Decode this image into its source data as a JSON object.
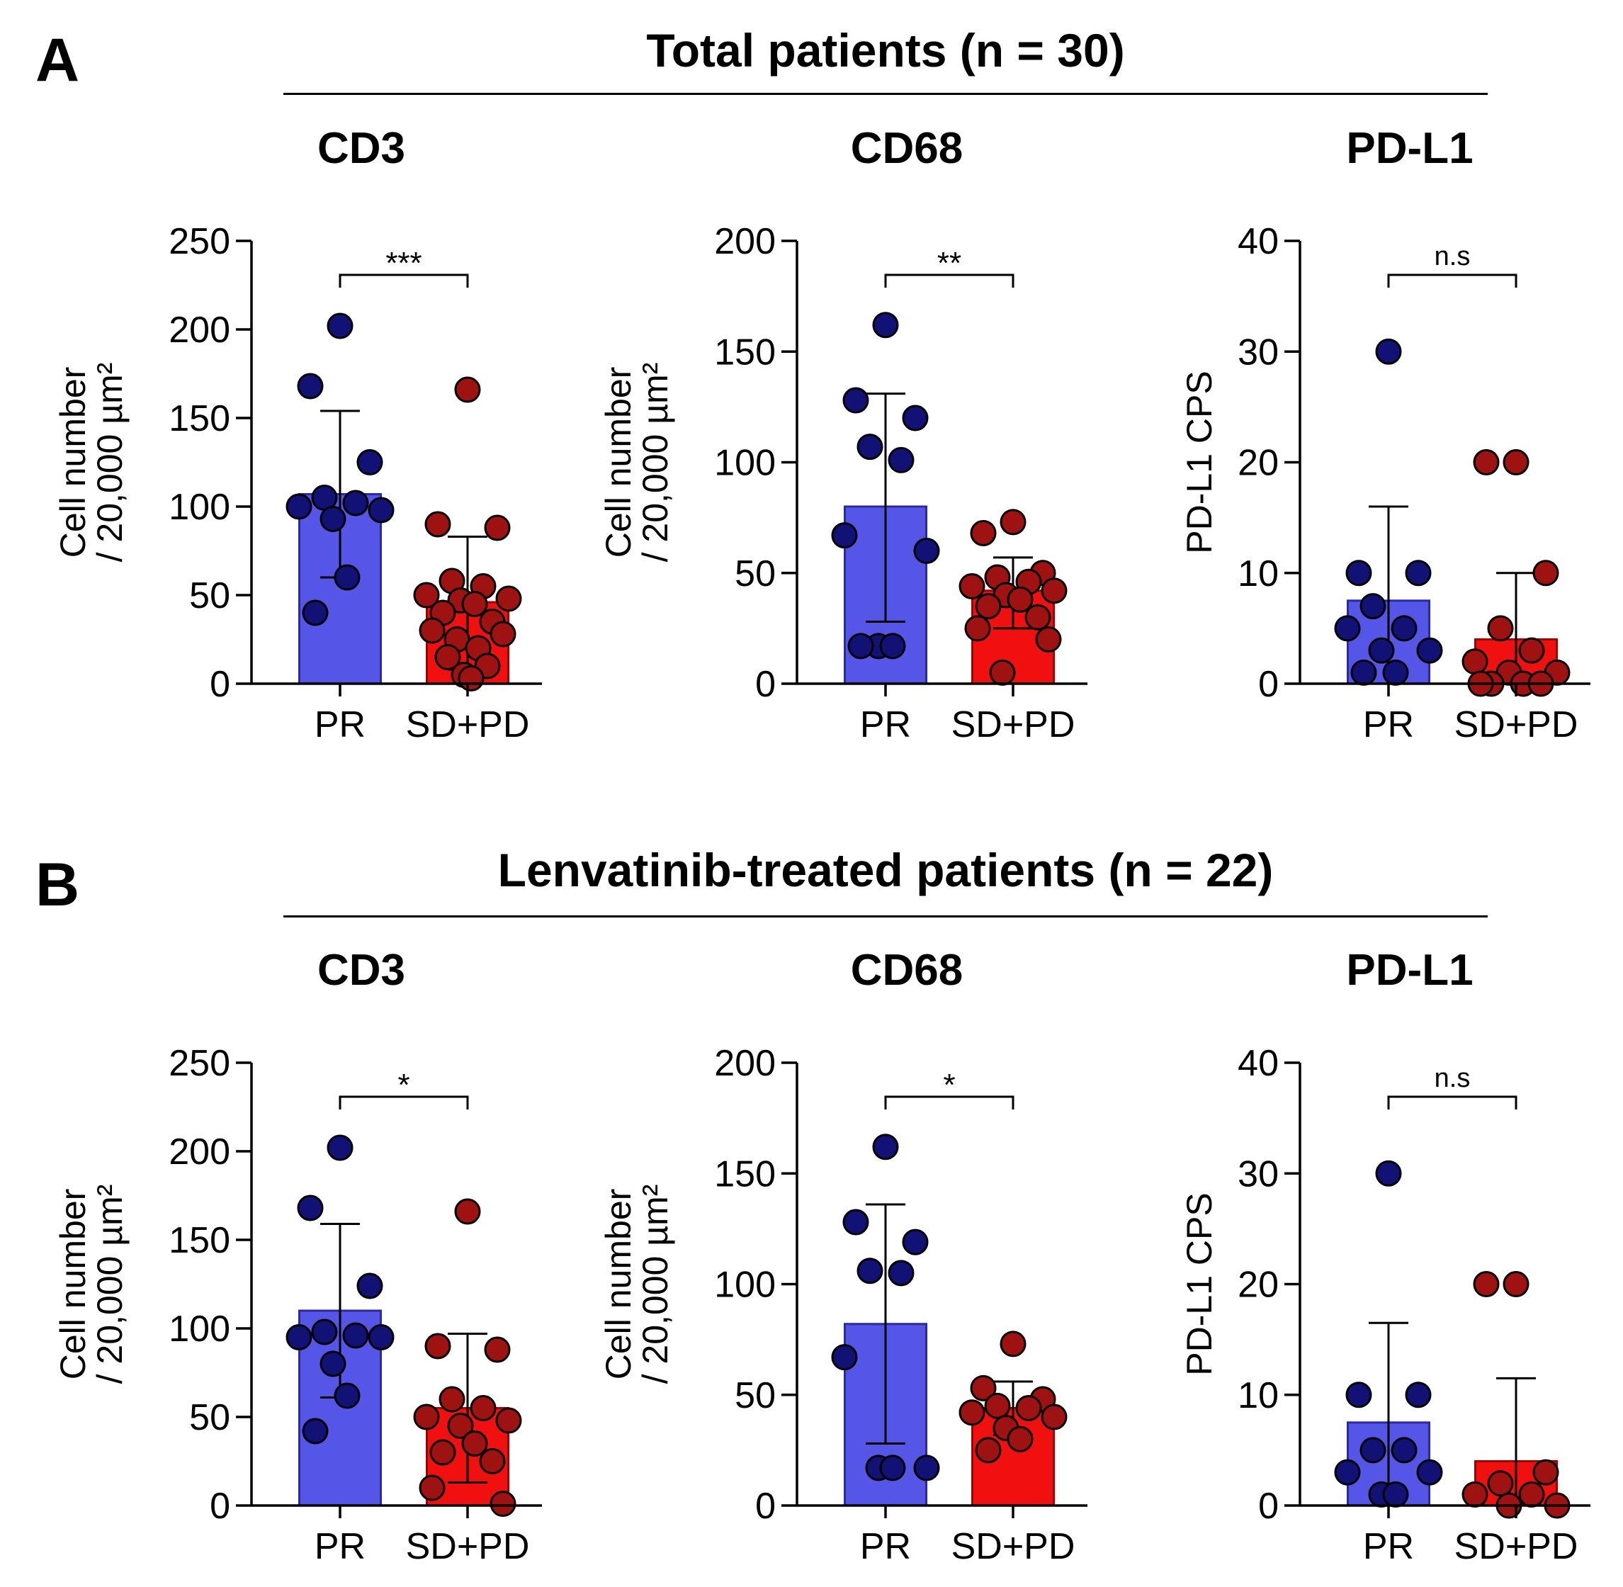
{
  "panels": [
    {
      "letter": "A",
      "title": "Total patients (n = 30)"
    },
    {
      "letter": "B",
      "title": "Lenvatinib-treated patients (n = 22)"
    }
  ],
  "colors": {
    "pr_bar": "#5555e8",
    "pr_dot": "#121276",
    "sdpd_bar": "#f01010",
    "sdpd_dot": "#9e1212",
    "axis": "#000000"
  },
  "chart_data": [
    {
      "type": "bar",
      "panel": "A",
      "title": "CD3",
      "ylabel_line1": "Cell number",
      "ylabel_line2": "/ 20,000 µm²",
      "categories": [
        "PR",
        "SD+PD"
      ],
      "ylim": [
        0,
        250
      ],
      "yticks": [
        0,
        50,
        100,
        150,
        200,
        250
      ],
      "significance": "***",
      "series": [
        {
          "name": "PR",
          "mean": 107,
          "sd_low": 60,
          "sd_high": 154,
          "points": [
            202,
            168,
            125,
            105,
            102,
            100,
            98,
            93,
            60,
            40
          ]
        },
        {
          "name": "SD+PD",
          "mean": 46,
          "sd_low": 8,
          "sd_high": 83,
          "points": [
            166,
            90,
            88,
            58,
            55,
            50,
            48,
            47,
            45,
            40,
            35,
            30,
            28,
            25,
            20,
            15,
            10,
            5,
            3
          ]
        }
      ]
    },
    {
      "type": "bar",
      "panel": "A",
      "title": "CD68",
      "ylabel_line1": "Cell number",
      "ylabel_line2": "/ 20,000 µm²",
      "categories": [
        "PR",
        "SD+PD"
      ],
      "ylim": [
        0,
        200
      ],
      "yticks": [
        0,
        50,
        100,
        150,
        200
      ],
      "significance": "**",
      "series": [
        {
          "name": "PR",
          "mean": 80,
          "sd_low": 28,
          "sd_high": 131,
          "points": [
            162,
            128,
            120,
            107,
            101,
            67,
            60,
            17,
            17,
            17
          ]
        },
        {
          "name": "SD+PD",
          "mean": 42,
          "sd_low": 25,
          "sd_high": 57,
          "points": [
            73,
            68,
            50,
            48,
            46,
            44,
            42,
            40,
            38,
            35,
            30,
            25,
            20,
            5
          ]
        }
      ]
    },
    {
      "type": "bar",
      "panel": "A",
      "title": "PD-L1",
      "ylabel_line1": "PD-L1 CPS",
      "ylabel_line2": "",
      "categories": [
        "PR",
        "SD+PD"
      ],
      "ylim": [
        0,
        40
      ],
      "yticks": [
        0,
        10,
        20,
        30,
        40
      ],
      "significance": "n.s",
      "series": [
        {
          "name": "PR",
          "mean": 7.5,
          "sd_low": 0,
          "sd_high": 16,
          "points": [
            30,
            10,
            10,
            7,
            5,
            5,
            3,
            3,
            1,
            1
          ]
        },
        {
          "name": "SD+PD",
          "mean": 4,
          "sd_low": 0,
          "sd_high": 10,
          "points": [
            20,
            20,
            10,
            5,
            3,
            2,
            1,
            1,
            0,
            0,
            0,
            0
          ]
        }
      ]
    },
    {
      "type": "bar",
      "panel": "B",
      "title": "CD3",
      "ylabel_line1": "Cell number",
      "ylabel_line2": "/ 20,000 µm²",
      "categories": [
        "PR",
        "SD+PD"
      ],
      "ylim": [
        0,
        250
      ],
      "yticks": [
        0,
        50,
        100,
        150,
        200,
        250
      ],
      "significance": "*",
      "series": [
        {
          "name": "PR",
          "mean": 110,
          "sd_low": 61,
          "sd_high": 159,
          "points": [
            202,
            168,
            124,
            98,
            96,
            95,
            95,
            80,
            62,
            42
          ]
        },
        {
          "name": "SD+PD",
          "mean": 55,
          "sd_low": 13,
          "sd_high": 97,
          "points": [
            166,
            90,
            88,
            60,
            55,
            50,
            48,
            45,
            35,
            30,
            25,
            10,
            1
          ]
        }
      ]
    },
    {
      "type": "bar",
      "panel": "B",
      "title": "CD68",
      "ylabel_line1": "Cell number",
      "ylabel_line2": "/ 20,000 µm²",
      "categories": [
        "PR",
        "SD+PD"
      ],
      "ylim": [
        0,
        200
      ],
      "yticks": [
        0,
        50,
        100,
        150,
        200
      ],
      "significance": "*",
      "series": [
        {
          "name": "PR",
          "mean": 82,
          "sd_low": 28,
          "sd_high": 136,
          "points": [
            162,
            128,
            119,
            106,
            105,
            67,
            17,
            17,
            17
          ]
        },
        {
          "name": "SD+PD",
          "mean": 44,
          "sd_low": 32,
          "sd_high": 56,
          "points": [
            73,
            53,
            48,
            45,
            44,
            42,
            40,
            35,
            30,
            25
          ]
        }
      ]
    },
    {
      "type": "bar",
      "panel": "B",
      "title": "PD-L1",
      "ylabel_line1": "PD-L1 CPS",
      "ylabel_line2": "",
      "categories": [
        "PR",
        "SD+PD"
      ],
      "ylim": [
        0,
        40
      ],
      "yticks": [
        0,
        10,
        20,
        30,
        40
      ],
      "significance": "n.s",
      "series": [
        {
          "name": "PR",
          "mean": 7.5,
          "sd_low": 0,
          "sd_high": 16.5,
          "points": [
            30,
            10,
            10,
            5,
            5,
            3,
            3,
            1,
            1
          ]
        },
        {
          "name": "SD+PD",
          "mean": 4,
          "sd_low": 0,
          "sd_high": 11.5,
          "points": [
            20,
            20,
            3,
            2,
            1,
            1,
            0,
            0
          ]
        }
      ]
    }
  ]
}
